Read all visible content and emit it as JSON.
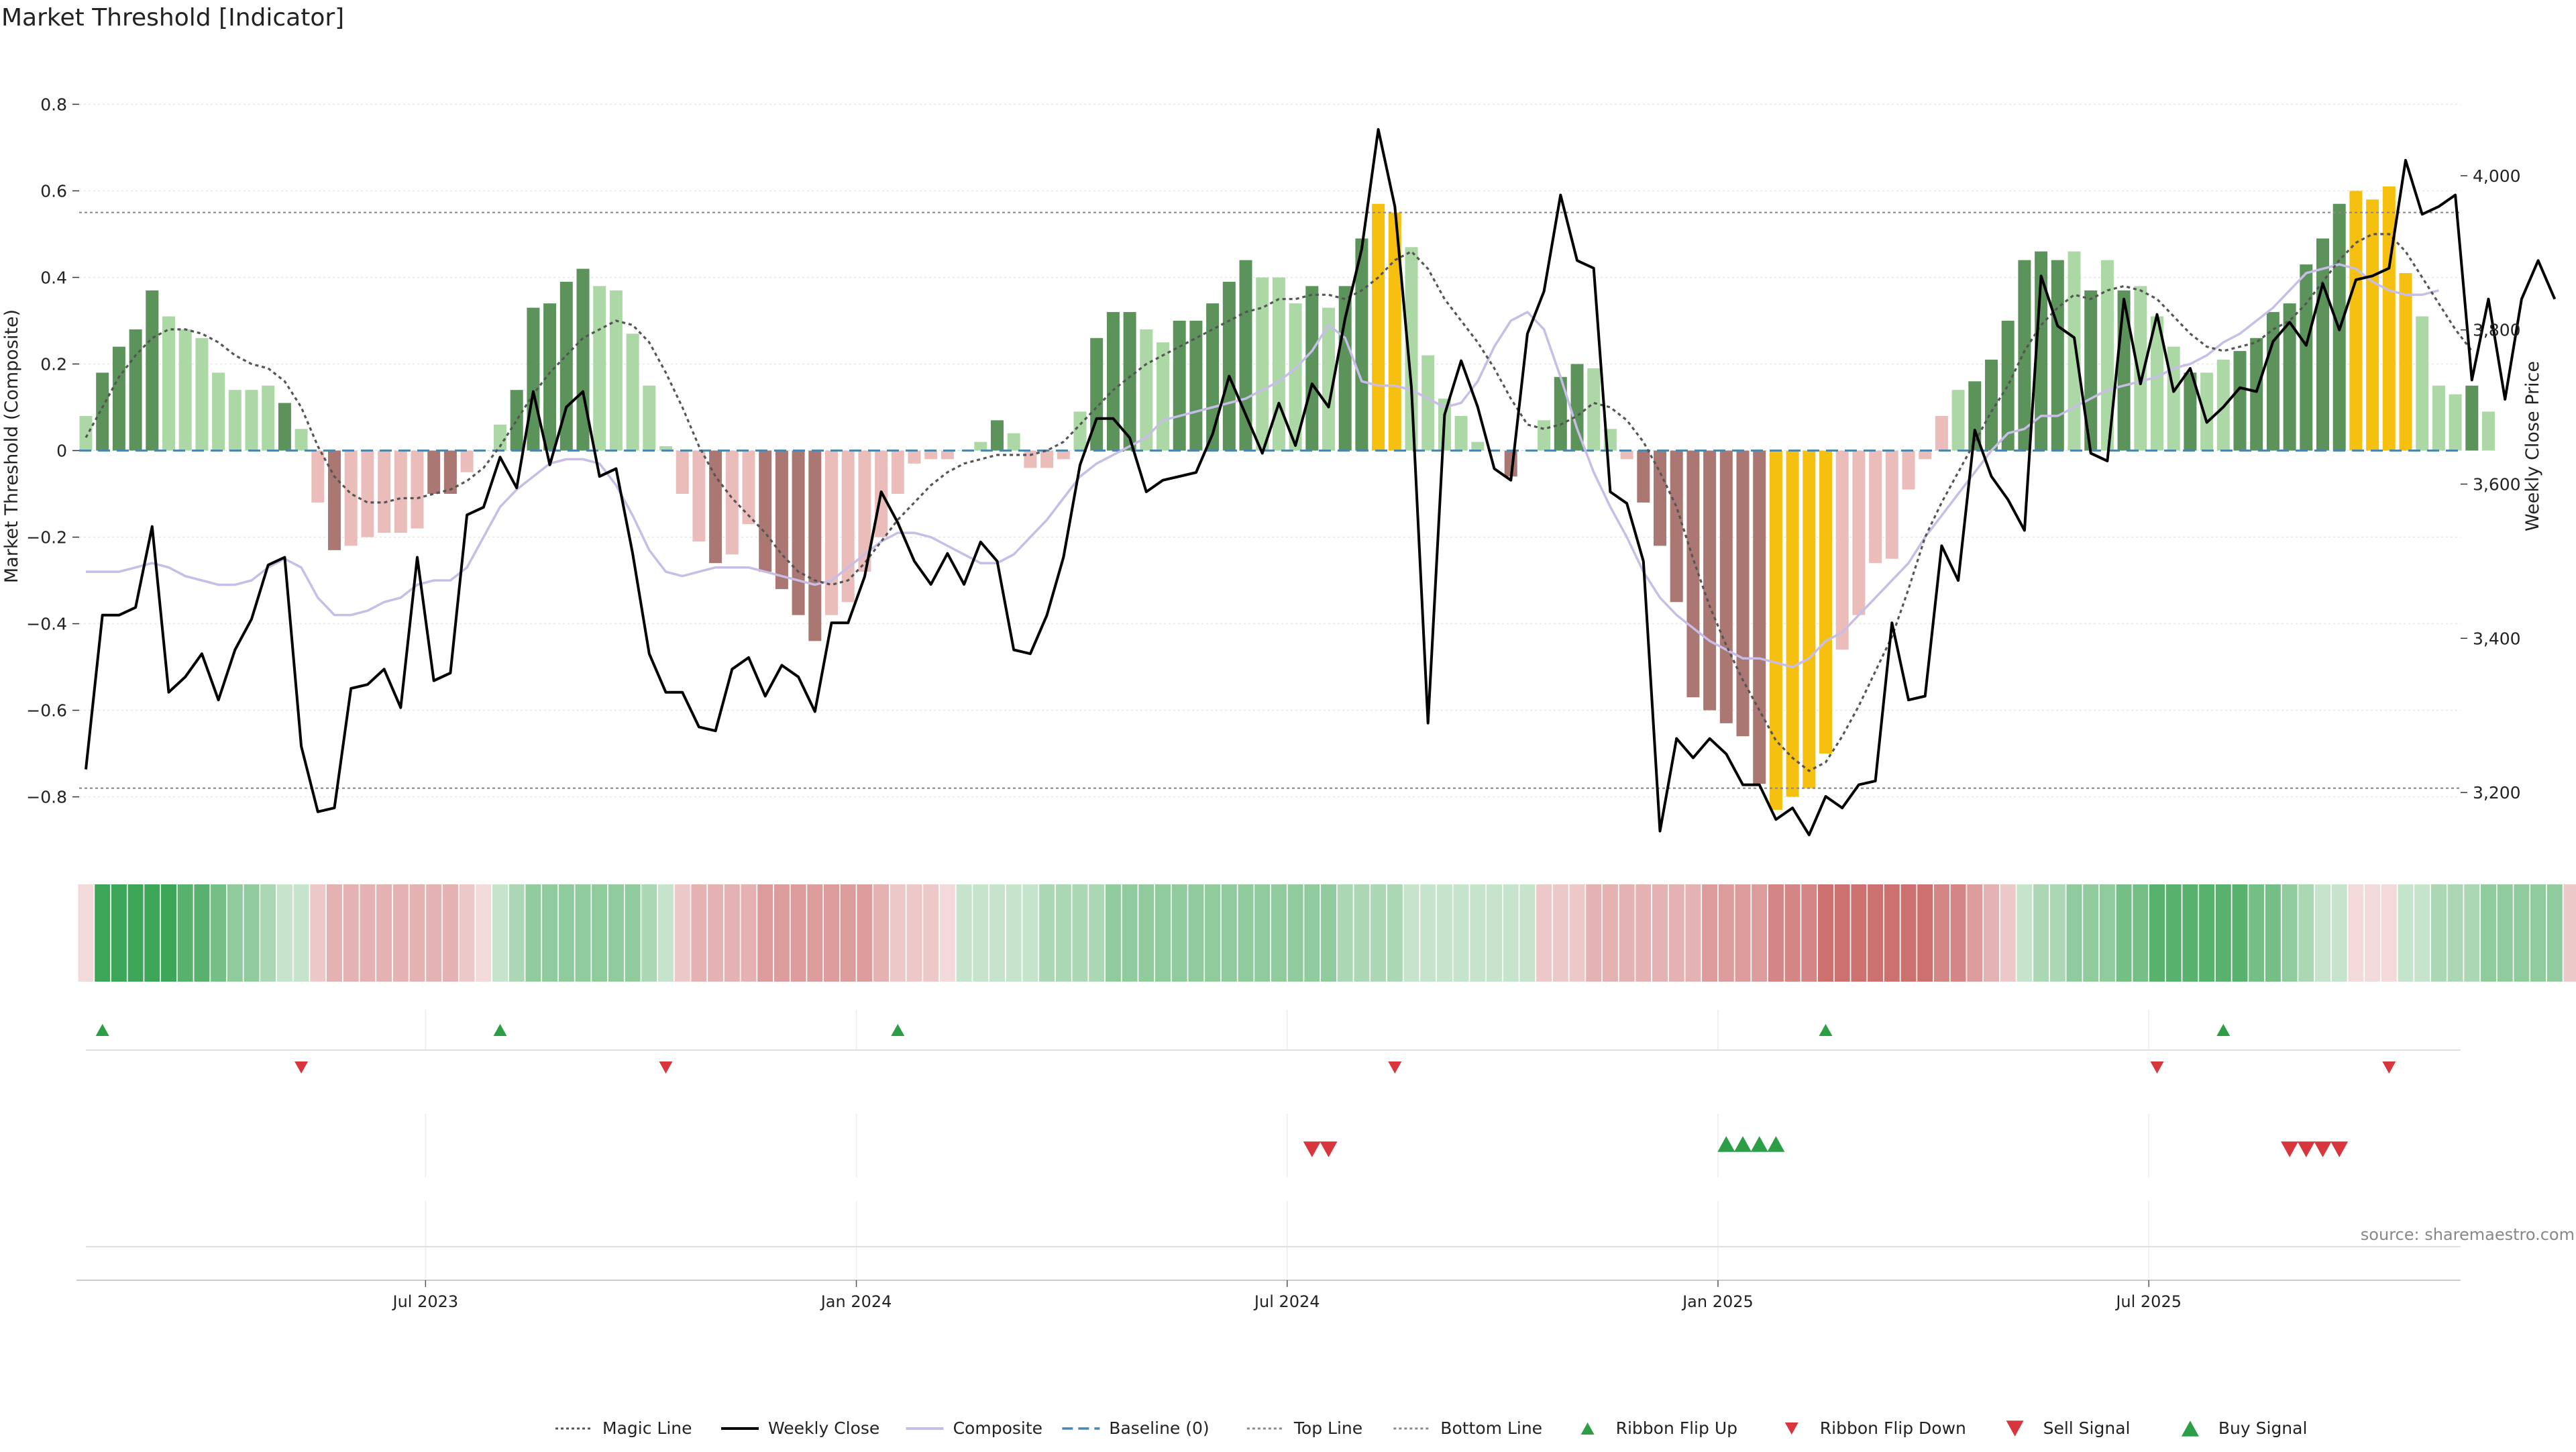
{
  "chart_data": {
    "type": "bar",
    "title": "Market Threshold [Indicator]",
    "source": "source: sharemaestro.com",
    "ylabel_left": "Market Threshold (Composite)",
    "ylabel_right": "Weekly Close Price",
    "ylim_left": [
      -0.92,
      0.92
    ],
    "ylim_right": [
      3127,
      4160
    ],
    "left_ticks": [
      "0.8",
      "0.6",
      "0.4",
      "0.2",
      "0",
      "−0.2",
      "−0.4",
      "−0.6",
      "−0.8"
    ],
    "left_tick_values": [
      0.8,
      0.6,
      0.4,
      0.2,
      0,
      -0.2,
      -0.4,
      -0.6,
      -0.8
    ],
    "right_ticks": [
      "4,000",
      "3,800",
      "3,600",
      "3,400",
      "3,200"
    ],
    "right_tick_values": [
      4000,
      3800,
      3600,
      3400,
      3200
    ],
    "x_ticks": [
      "Jul 2023",
      "Jan 2024",
      "Jul 2024",
      "Jan 2025",
      "Jul 2025"
    ],
    "x_tick_weeks": [
      20.5,
      46.5,
      72.5,
      98.5,
      124.5
    ],
    "n_weeks": 143,
    "top_line": 0.55,
    "bottom_line": -0.78,
    "composite": [
      0.08,
      0.18,
      0.24,
      0.28,
      0.37,
      0.31,
      0.28,
      0.26,
      0.18,
      0.14,
      0.14,
      0.15,
      0.11,
      0.05,
      -0.12,
      -0.23,
      -0.22,
      -0.2,
      -0.19,
      -0.19,
      -0.18,
      -0.1,
      -0.1,
      -0.05,
      0.0,
      0.06,
      0.14,
      0.33,
      0.34,
      0.39,
      0.42,
      0.38,
      0.37,
      0.27,
      0.15,
      0.01,
      -0.1,
      -0.21,
      -0.26,
      -0.24,
      -0.17,
      -0.28,
      -0.32,
      -0.38,
      -0.44,
      -0.38,
      -0.35,
      -0.28,
      -0.2,
      -0.1,
      -0.03,
      -0.02,
      -0.02,
      0.0,
      0.02,
      0.07,
      0.04,
      -0.04,
      -0.04,
      -0.02,
      0.09,
      0.26,
      0.32,
      0.32,
      0.28,
      0.25,
      0.3,
      0.3,
      0.34,
      0.39,
      0.44,
      0.4,
      0.4,
      0.34,
      0.38,
      0.33,
      0.38,
      0.49,
      0.57,
      0.55,
      0.47,
      0.22,
      0.12,
      0.08,
      0.02,
      0.0,
      -0.06,
      0.0,
      0.07,
      0.17,
      0.2,
      0.19,
      0.05,
      -0.02,
      -0.12,
      -0.22,
      -0.35,
      -0.57,
      -0.6,
      -0.63,
      -0.66,
      -0.77,
      -0.83,
      -0.8,
      -0.78,
      -0.7,
      -0.46,
      -0.38,
      -0.26,
      -0.25,
      -0.09,
      -0.02,
      0.08,
      0.14,
      0.16,
      0.21,
      0.3,
      0.44,
      0.46,
      0.44,
      0.46,
      0.37,
      0.44,
      0.37,
      0.38,
      0.31,
      0.24,
      0.18,
      0.18,
      0.21,
      0.23,
      0.26,
      0.32,
      0.34,
      0.43,
      0.49,
      0.57,
      0.6,
      0.58,
      0.61,
      0.41,
      0.31,
      0.15,
      0.13,
      0.15,
      0.09
    ],
    "magic_line": [
      0.03,
      0.1,
      0.17,
      0.22,
      0.26,
      0.28,
      0.28,
      0.27,
      0.25,
      0.22,
      0.2,
      0.19,
      0.16,
      0.1,
      0.01,
      -0.06,
      -0.1,
      -0.12,
      -0.12,
      -0.11,
      -0.11,
      -0.1,
      -0.09,
      -0.07,
      -0.04,
      0.01,
      0.07,
      0.13,
      0.18,
      0.22,
      0.26,
      0.28,
      0.3,
      0.29,
      0.25,
      0.18,
      0.1,
      0.01,
      -0.06,
      -0.11,
      -0.15,
      -0.19,
      -0.24,
      -0.28,
      -0.3,
      -0.31,
      -0.3,
      -0.26,
      -0.21,
      -0.16,
      -0.12,
      -0.08,
      -0.05,
      -0.03,
      -0.02,
      -0.01,
      -0.01,
      -0.01,
      0.0,
      0.02,
      0.06,
      0.1,
      0.14,
      0.17,
      0.2,
      0.22,
      0.24,
      0.26,
      0.28,
      0.3,
      0.32,
      0.33,
      0.35,
      0.35,
      0.36,
      0.36,
      0.35,
      0.37,
      0.4,
      0.44,
      0.46,
      0.42,
      0.35,
      0.3,
      0.25,
      0.19,
      0.12,
      0.06,
      0.05,
      0.06,
      0.08,
      0.11,
      0.1,
      0.07,
      0.02,
      -0.05,
      -0.13,
      -0.25,
      -0.36,
      -0.45,
      -0.53,
      -0.6,
      -0.67,
      -0.71,
      -0.74,
      -0.72,
      -0.66,
      -0.59,
      -0.51,
      -0.43,
      -0.32,
      -0.2,
      -0.12,
      -0.05,
      0.02,
      0.09,
      0.15,
      0.23,
      0.29,
      0.33,
      0.36,
      0.35,
      0.37,
      0.38,
      0.37,
      0.35,
      0.31,
      0.27,
      0.24,
      0.23,
      0.24,
      0.25,
      0.28,
      0.3,
      0.34,
      0.39,
      0.44,
      0.48,
      0.5,
      0.5,
      0.46,
      0.4,
      0.34,
      0.28,
      0.23
    ],
    "composite_smooth": [
      -0.28,
      -0.28,
      -0.28,
      -0.27,
      -0.26,
      -0.27,
      -0.29,
      -0.3,
      -0.31,
      -0.31,
      -0.3,
      -0.27,
      -0.25,
      -0.27,
      -0.34,
      -0.38,
      -0.38,
      -0.37,
      -0.35,
      -0.34,
      -0.31,
      -0.3,
      -0.3,
      -0.27,
      -0.2,
      -0.13,
      -0.09,
      -0.06,
      -0.03,
      -0.02,
      -0.02,
      -0.03,
      -0.08,
      -0.15,
      -0.23,
      -0.28,
      -0.29,
      -0.28,
      -0.27,
      -0.27,
      -0.27,
      -0.28,
      -0.29,
      -0.3,
      -0.31,
      -0.3,
      -0.27,
      -0.24,
      -0.21,
      -0.19,
      -0.19,
      -0.2,
      -0.22,
      -0.24,
      -0.26,
      -0.26,
      -0.24,
      -0.2,
      -0.16,
      -0.11,
      -0.06,
      -0.03,
      -0.01,
      0.01,
      0.03,
      0.07,
      0.08,
      0.09,
      0.1,
      0.11,
      0.12,
      0.14,
      0.16,
      0.19,
      0.23,
      0.29,
      0.26,
      0.16,
      0.15,
      0.15,
      0.14,
      0.12,
      0.1,
      0.11,
      0.16,
      0.24,
      0.3,
      0.32,
      0.28,
      0.17,
      0.05,
      -0.05,
      -0.13,
      -0.2,
      -0.28,
      -0.34,
      -0.38,
      -0.41,
      -0.44,
      -0.46,
      -0.48,
      -0.48,
      -0.49,
      -0.5,
      -0.48,
      -0.44,
      -0.42,
      -0.38,
      -0.34,
      -0.3,
      -0.26,
      -0.2,
      -0.15,
      -0.1,
      -0.05,
      -0.0,
      0.04,
      0.05,
      0.08,
      0.08,
      0.1,
      0.12,
      0.14,
      0.15,
      0.16,
      0.17,
      0.19,
      0.2,
      0.22,
      0.25,
      0.27,
      0.3,
      0.33,
      0.37,
      0.41,
      0.42,
      0.43,
      0.42,
      0.39,
      0.37,
      0.36,
      0.36,
      0.37
    ],
    "weekly_close": [
      3230,
      3430,
      3430,
      3440,
      3545,
      3330,
      3350,
      3380,
      3320,
      3385,
      3425,
      3495,
      3505,
      3260,
      3175,
      3180,
      3335,
      3340,
      3360,
      3310,
      3505,
      3345,
      3355,
      3560,
      3570,
      3635,
      3595,
      3720,
      3625,
      3700,
      3720,
      3610,
      3620,
      3510,
      3380,
      3330,
      3330,
      3285,
      3280,
      3360,
      3375,
      3325,
      3365,
      3350,
      3305,
      3420,
      3420,
      3480,
      3590,
      3550,
      3500,
      3470,
      3510,
      3470,
      3525,
      3500,
      3385,
      3380,
      3430,
      3505,
      3625,
      3685,
      3685,
      3660,
      3590,
      3605,
      3610,
      3615,
      3665,
      3740,
      3690,
      3640,
      3705,
      3650,
      3730,
      3700,
      3815,
      3905,
      4060,
      3960,
      3725,
      3290,
      3690,
      3760,
      3700,
      3620,
      3605,
      3795,
      3850,
      3975,
      3890,
      3880,
      3590,
      3575,
      3500,
      3150,
      3270,
      3245,
      3270,
      3250,
      3210,
      3210,
      3165,
      3180,
      3145,
      3195,
      3180,
      3210,
      3215,
      3420,
      3320,
      3325,
      3520,
      3475,
      3670,
      3610,
      3580,
      3540,
      3870,
      3805,
      3790,
      3640,
      3630,
      3840,
      3730,
      3820,
      3720,
      3750,
      3680,
      3700,
      3725,
      3720,
      3785,
      3810,
      3780,
      3860,
      3800,
      3865,
      3870,
      3880,
      4020,
      3950,
      3960,
      3975,
      3735,
      3840,
      3710,
      3840,
      3890,
      3840
    ],
    "bar_classes": [
      "lg",
      "dg",
      "dg",
      "dg",
      "dg",
      "lg",
      "lg",
      "lg",
      "lg",
      "lg",
      "lg",
      "lg",
      "dg",
      "lg",
      "lr",
      "dr",
      "lr",
      "lr",
      "lr",
      "lr",
      "lr",
      "dr",
      "dr",
      "lr",
      "lr",
      "lg",
      "dg",
      "dg",
      "dg",
      "dg",
      "dg",
      "lg",
      "lg",
      "lg",
      "lg",
      "lg",
      "lr",
      "lr",
      "dr",
      "lr",
      "lr",
      "dr",
      "dr",
      "dr",
      "dr",
      "lr",
      "lr",
      "lr",
      "lr",
      "lr",
      "lr",
      "lr",
      "lr",
      "lr",
      "lg",
      "dg",
      "lg",
      "lr",
      "lr",
      "lr",
      "lg",
      "dg",
      "dg",
      "dg",
      "lg",
      "lg",
      "dg",
      "dg",
      "dg",
      "dg",
      "dg",
      "lg",
      "lg",
      "lg",
      "dg",
      "lg",
      "dg",
      "dg",
      "yl",
      "yl",
      "lg",
      "lg",
      "lg",
      "lg",
      "lg",
      "lr",
      "dr",
      "lg",
      "lg",
      "dg",
      "dg",
      "lg",
      "lg",
      "lr",
      "dr",
      "dr",
      "dr",
      "dr",
      "dr",
      "dr",
      "dr",
      "dr",
      "yl",
      "yl",
      "yl",
      "yl",
      "lr",
      "lr",
      "lr",
      "lr",
      "lr",
      "lr",
      "lr",
      "lg",
      "dg",
      "dg",
      "dg",
      "dg",
      "dg",
      "dg",
      "lg",
      "dg",
      "lg",
      "dg",
      "lg",
      "lg",
      "lg",
      "dg",
      "lg",
      "lg",
      "dg",
      "dg",
      "dg",
      "dg",
      "dg",
      "dg",
      "dg",
      "yl",
      "yl",
      "yl",
      "yl",
      "lg",
      "lg",
      "lg",
      "dg",
      "lg"
    ],
    "ribbon_colors": [
      "#f2dada",
      "#3da659",
      "#3da659",
      "#3da659",
      "#3da659",
      "#3da659",
      "#58b26e",
      "#58b26e",
      "#74bf86",
      "#8fcb9d",
      "#8fcb9d",
      "#abd7b5",
      "#c6e4cc",
      "#c6e4cc",
      "#ecc8c8",
      "#e4b2b2",
      "#e4b2b2",
      "#e4b2b2",
      "#e4b2b2",
      "#e4b2b2",
      "#e4b2b2",
      "#e4b2b2",
      "#e4b2b2",
      "#ecc8c8",
      "#f2dada",
      "#c6e4cc",
      "#abd7b5",
      "#8fcb9d",
      "#8fcb9d",
      "#8fcb9d",
      "#8fcb9d",
      "#8fcb9d",
      "#8fcb9d",
      "#8fcb9d",
      "#abd7b5",
      "#c6e4cc",
      "#ecc8c8",
      "#e4b2b2",
      "#e4b2b2",
      "#e4b2b2",
      "#e4b2b2",
      "#dc9c9c",
      "#dc9c9c",
      "#dc9c9c",
      "#dc9c9c",
      "#dc9c9c",
      "#dc9c9c",
      "#dc9c9c",
      "#e4b2b2",
      "#ecc8c8",
      "#ecc8c8",
      "#ecc8c8",
      "#f2dada",
      "#c6e4cc",
      "#c6e4cc",
      "#c6e4cc",
      "#c6e4cc",
      "#c6e4cc",
      "#abd7b5",
      "#abd7b5",
      "#abd7b5",
      "#abd7b5",
      "#8fcb9d",
      "#8fcb9d",
      "#8fcb9d",
      "#8fcb9d",
      "#8fcb9d",
      "#8fcb9d",
      "#8fcb9d",
      "#8fcb9d",
      "#8fcb9d",
      "#8fcb9d",
      "#8fcb9d",
      "#8fcb9d",
      "#8fcb9d",
      "#8fcb9d",
      "#abd7b5",
      "#abd7b5",
      "#abd7b5",
      "#abd7b5",
      "#c6e4cc",
      "#c6e4cc",
      "#c6e4cc",
      "#c6e4cc",
      "#c6e4cc",
      "#c6e4cc",
      "#c6e4cc",
      "#c6e4cc",
      "#ecc8c8",
      "#ecc8c8",
      "#ecc8c8",
      "#e4b2b2",
      "#e4b2b2",
      "#e4b2b2",
      "#e4b2b2",
      "#e4b2b2",
      "#e4b2b2",
      "#e4b2b2",
      "#dc9c9c",
      "#dc9c9c",
      "#dc9c9c",
      "#dc9c9c",
      "#d48686",
      "#d48686",
      "#d48686",
      "#cc7070",
      "#cc7070",
      "#cc7070",
      "#cc7070",
      "#cc7070",
      "#cc7070",
      "#cc7070",
      "#d48686",
      "#d48686",
      "#dc9c9c",
      "#e4b2b2",
      "#ecc8c8",
      "#c6e4cc",
      "#abd7b5",
      "#abd7b5",
      "#8fcb9d",
      "#8fcb9d",
      "#8fcb9d",
      "#74bf86",
      "#74bf86",
      "#58b26e",
      "#58b26e",
      "#58b26e",
      "#58b26e",
      "#58b26e",
      "#58b26e",
      "#74bf86",
      "#74bf86",
      "#8fcb9d",
      "#abd7b5",
      "#c6e4cc",
      "#c6e4cc",
      "#f2dada",
      "#f2dada",
      "#f2dada",
      "#c6e4cc",
      "#c6e4cc",
      "#abd7b5",
      "#abd7b5",
      "#abd7b5",
      "#8fcb9d",
      "#8fcb9d",
      "#8fcb9d",
      "#8fcb9d",
      "#8fcb9d",
      "#ecc8c8",
      "#e4b2b2",
      "#e4b2b2",
      "#e4b2b2"
    ],
    "ribbon_flip_up_weeks": [
      1,
      25,
      49,
      105,
      129
    ],
    "ribbon_flip_down_weeks": [
      13,
      35,
      79,
      125,
      139
    ],
    "sell_signal_weeks": [
      74,
      75,
      133,
      134,
      135,
      136
    ],
    "buy_signal_weeks": [
      99,
      100,
      101,
      102
    ],
    "legend": [
      "Magic Line",
      "Weekly Close",
      "Composite",
      "Baseline (0)",
      "Top Line",
      "Bottom Line",
      "Ribbon Flip Up",
      "Ribbon Flip Down",
      "Sell Signal",
      "Buy Signal"
    ],
    "colors": {
      "dark_green_bar": "#5b935b",
      "light_green_bar": "#acd8a6",
      "dark_red_bar": "#aa7773",
      "light_red_bar": "#ebbdba",
      "yellow_bar": "#f5c010",
      "weekly_close": "#000000",
      "composite": "#c7bde6",
      "magic_line": "#555555",
      "baseline": "#4a86ae",
      "signal_green": "#2c9e46",
      "signal_red": "#d6363c"
    }
  }
}
